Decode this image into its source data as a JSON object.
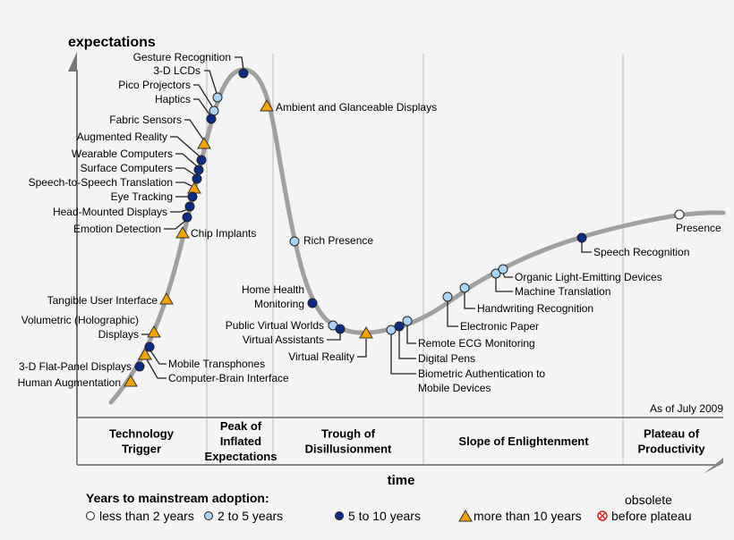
{
  "axes": {
    "y_label": "expectations",
    "x_label": "time"
  },
  "as_of": "As of July 2009",
  "phases": [
    {
      "lines": [
        "Technology",
        "Trigger"
      ]
    },
    {
      "lines": [
        "Peak of",
        "Inflated",
        "Expectations"
      ]
    },
    {
      "lines": [
        "Trough of",
        "Disillusionment"
      ]
    },
    {
      "lines": [
        "Slope of Enlightenment"
      ]
    },
    {
      "lines": [
        "Plateau of",
        "Productivity"
      ]
    }
  ],
  "colors": {
    "curve": "#a0a0a0",
    "less_than_2": "#ffffff",
    "2_to_5": "#a8d4f5",
    "5_to_10": "#0b2c84",
    "more_than_10": "#f5a300",
    "obsolete": "#e02020"
  },
  "legend": {
    "title": "Years to mainstream adoption:",
    "items": [
      {
        "key": "less_than_2",
        "shape": "circle",
        "label": "less than 2 years"
      },
      {
        "key": "2_to_5",
        "shape": "circle",
        "label": "2 to 5 years"
      },
      {
        "key": "5_to_10",
        "shape": "circle",
        "label": "5 to 10 years"
      },
      {
        "key": "more_than_10",
        "shape": "triangle",
        "label": "more than 10 years"
      },
      {
        "key": "obsolete",
        "shape": "crossed-circle",
        "label_top": "obsolete",
        "label": "before plateau"
      }
    ]
  },
  "technologies": [
    {
      "name": "Gesture Recognition",
      "adoption": "5_to_10"
    },
    {
      "name": "3-D LCDs",
      "adoption": "2_to_5"
    },
    {
      "name": "Pico Projectors",
      "adoption": "2_to_5"
    },
    {
      "name": "Haptics",
      "adoption": "5_to_10"
    },
    {
      "name": "Fabric Sensors",
      "adoption": "more_than_10"
    },
    {
      "name": "Augmented Reality",
      "adoption": "5_to_10"
    },
    {
      "name": "Wearable Computers",
      "adoption": "5_to_10"
    },
    {
      "name": "Surface Computers",
      "adoption": "5_to_10"
    },
    {
      "name": "Speech-to-Speech Translation",
      "adoption": "more_than_10"
    },
    {
      "name": "Eye Tracking",
      "adoption": "5_to_10"
    },
    {
      "name": "Head-Mounted Displays",
      "adoption": "5_to_10"
    },
    {
      "name": "Emotion Detection",
      "adoption": "5_to_10"
    },
    {
      "name": "Chip Implants",
      "adoption": "more_than_10"
    },
    {
      "name": "Tangible User Interface",
      "adoption": "more_than_10"
    },
    {
      "name": "Volumetric (Holographic)|Displays",
      "adoption": "more_than_10"
    },
    {
      "name": "Mobile Transphones",
      "adoption": "5_to_10"
    },
    {
      "name": "Computer-Brain Interface",
      "adoption": "more_than_10"
    },
    {
      "name": "3-D Flat-Panel Displays",
      "adoption": "5_to_10"
    },
    {
      "name": "Human Augmentation",
      "adoption": "more_than_10"
    },
    {
      "name": "Ambient and Glanceable Displays",
      "adoption": "more_than_10"
    },
    {
      "name": "Rich Presence",
      "adoption": "2_to_5"
    },
    {
      "name": "Home Health|Monitoring",
      "adoption": "5_to_10"
    },
    {
      "name": "Public Virtual Worlds",
      "adoption": "2_to_5"
    },
    {
      "name": "Virtual Assistants",
      "adoption": "5_to_10"
    },
    {
      "name": "Virtual Reality",
      "adoption": "more_than_10"
    },
    {
      "name": "Biometric Authentication to|Mobile Devices",
      "adoption": "2_to_5"
    },
    {
      "name": "Digital Pens",
      "adoption": "5_to_10"
    },
    {
      "name": "Remote ECG Monitoring",
      "adoption": "2_to_5"
    },
    {
      "name": "Electronic Paper",
      "adoption": "2_to_5"
    },
    {
      "name": "Handwriting Recognition",
      "adoption": "2_to_5"
    },
    {
      "name": "Machine Translation",
      "adoption": "2_to_5"
    },
    {
      "name": "Organic Light-Emitting Devices",
      "adoption": "2_to_5"
    },
    {
      "name": "Speech Recognition",
      "adoption": "5_to_10"
    },
    {
      "name": "Presence",
      "adoption": "less_than_2"
    }
  ]
}
